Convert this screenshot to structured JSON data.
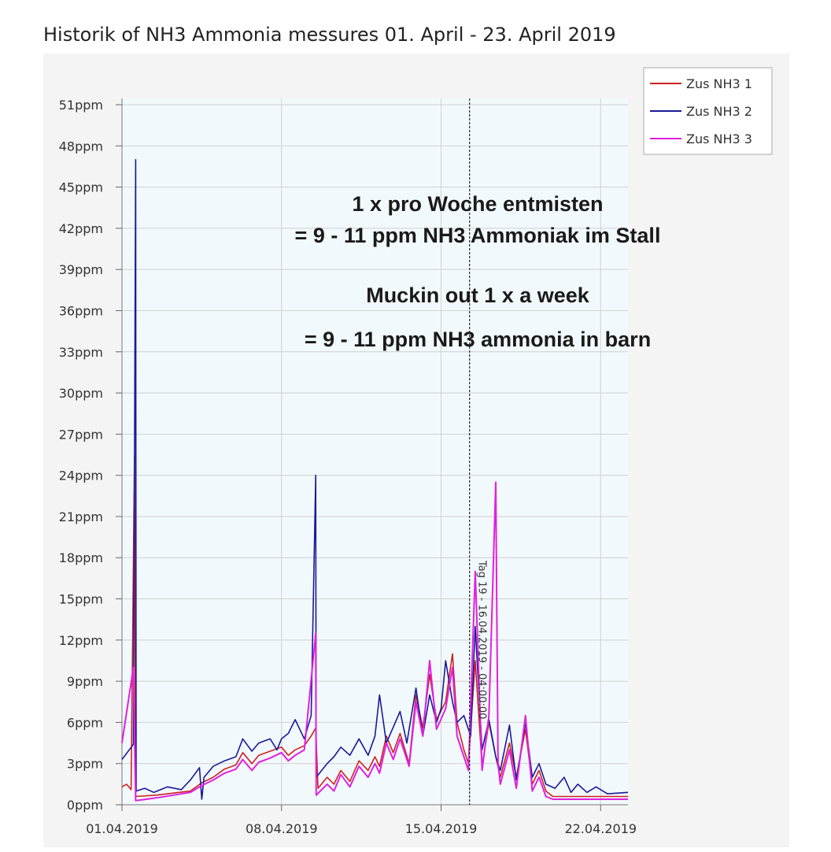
{
  "chart_data": {
    "type": "line",
    "title": "Historik of NH3 Ammonia messures 01. April - 23. April 2019",
    "xlabel": "",
    "ylabel": "",
    "x_start": "01.04.2019",
    "x_end": "23.04.2019",
    "xlim_days": [
      0,
      22.2
    ],
    "ylim": [
      0,
      51
    ],
    "y_ticks": [
      0,
      3,
      6,
      9,
      12,
      15,
      18,
      21,
      24,
      27,
      30,
      33,
      36,
      39,
      42,
      45,
      48,
      51
    ],
    "y_tick_labels": [
      "0ppm",
      "3ppm",
      "6ppm",
      "9ppm",
      "12ppm",
      "15ppm",
      "18ppm",
      "21ppm",
      "24ppm",
      "27ppm",
      "30ppm",
      "33ppm",
      "36ppm",
      "39ppm",
      "42ppm",
      "45ppm",
      "48ppm",
      "51ppm"
    ],
    "x_ticks": [
      0,
      7,
      14,
      21
    ],
    "x_tick_labels": [
      "01.04.2019",
      "08.04.2019",
      "15.04.2019",
      "22.04.2019"
    ],
    "grid": true,
    "legend_position": "top-right",
    "series": [
      {
        "name": "Zus NH3 1",
        "color": "#cc2222",
        "points": [
          [
            0,
            1.3
          ],
          [
            0.2,
            1.5
          ],
          [
            0.4,
            1.1
          ],
          [
            0.55,
            25.5
          ],
          [
            0.6,
            0.6
          ],
          [
            1.5,
            0.7
          ],
          [
            3.0,
            1.0
          ],
          [
            3.5,
            1.6
          ],
          [
            4.0,
            2.0
          ],
          [
            4.5,
            2.6
          ],
          [
            5.0,
            2.9
          ],
          [
            5.3,
            3.8
          ],
          [
            5.7,
            3.0
          ],
          [
            6.0,
            3.6
          ],
          [
            6.5,
            3.9
          ],
          [
            7.0,
            4.2
          ],
          [
            7.3,
            3.6
          ],
          [
            7.6,
            4.0
          ],
          [
            8.0,
            4.3
          ],
          [
            8.3,
            5.0
          ],
          [
            8.5,
            5.6
          ],
          [
            8.6,
            1.2
          ],
          [
            9.0,
            2.0
          ],
          [
            9.3,
            1.5
          ],
          [
            9.6,
            2.5
          ],
          [
            10.0,
            1.7
          ],
          [
            10.4,
            3.2
          ],
          [
            10.8,
            2.5
          ],
          [
            11.1,
            3.5
          ],
          [
            11.3,
            2.8
          ],
          [
            11.6,
            5.0
          ],
          [
            11.9,
            3.8
          ],
          [
            12.2,
            5.2
          ],
          [
            12.6,
            3.0
          ],
          [
            12.9,
            8.0
          ],
          [
            13.2,
            5.6
          ],
          [
            13.5,
            9.5
          ],
          [
            13.8,
            6.2
          ],
          [
            14.2,
            7.5
          ],
          [
            14.5,
            11.0
          ],
          [
            14.7,
            6.0
          ],
          [
            15.0,
            4.0
          ],
          [
            15.2,
            3.0
          ],
          [
            15.5,
            10.5
          ],
          [
            15.8,
            2.8
          ],
          [
            16.1,
            6.0
          ],
          [
            16.4,
            3.5
          ],
          [
            16.6,
            2.0
          ],
          [
            17.0,
            4.5
          ],
          [
            17.3,
            2.0
          ],
          [
            17.7,
            5.5
          ],
          [
            18.0,
            1.5
          ],
          [
            18.3,
            2.5
          ],
          [
            18.6,
            1.0
          ],
          [
            18.9,
            0.6
          ],
          [
            22.2,
            0.6
          ]
        ]
      },
      {
        "name": "Zus NH3 2",
        "color": "#1a1a99",
        "points": [
          [
            0,
            3.3
          ],
          [
            0.5,
            4.4
          ],
          [
            0.6,
            47.0
          ],
          [
            0.62,
            1.0
          ],
          [
            1.0,
            1.2
          ],
          [
            1.4,
            0.9
          ],
          [
            2.0,
            1.3
          ],
          [
            2.6,
            1.1
          ],
          [
            3.0,
            1.8
          ],
          [
            3.4,
            2.7
          ],
          [
            3.5,
            0.4
          ],
          [
            3.6,
            2.0
          ],
          [
            4.0,
            2.8
          ],
          [
            4.5,
            3.2
          ],
          [
            5.0,
            3.5
          ],
          [
            5.3,
            4.8
          ],
          [
            5.7,
            3.9
          ],
          [
            6.0,
            4.5
          ],
          [
            6.5,
            4.8
          ],
          [
            6.8,
            4.0
          ],
          [
            7.0,
            4.8
          ],
          [
            7.3,
            5.2
          ],
          [
            7.6,
            6.2
          ],
          [
            8.0,
            4.8
          ],
          [
            8.3,
            6.5
          ],
          [
            8.5,
            24.0
          ],
          [
            8.52,
            2.0
          ],
          [
            9.0,
            3.0
          ],
          [
            9.3,
            3.5
          ],
          [
            9.6,
            4.2
          ],
          [
            10.0,
            3.6
          ],
          [
            10.4,
            4.8
          ],
          [
            10.8,
            3.6
          ],
          [
            11.1,
            5.0
          ],
          [
            11.3,
            8.0
          ],
          [
            11.6,
            4.5
          ],
          [
            12.2,
            6.8
          ],
          [
            12.5,
            4.5
          ],
          [
            12.9,
            8.5
          ],
          [
            13.2,
            5.0
          ],
          [
            13.5,
            8.0
          ],
          [
            13.8,
            6.0
          ],
          [
            14.0,
            7.0
          ],
          [
            14.2,
            10.5
          ],
          [
            14.5,
            7.5
          ],
          [
            14.7,
            6.0
          ],
          [
            15.0,
            6.5
          ],
          [
            15.3,
            5.0
          ],
          [
            15.5,
            13.0
          ],
          [
            15.8,
            4.0
          ],
          [
            16.1,
            6.2
          ],
          [
            16.4,
            3.5
          ],
          [
            16.6,
            2.5
          ],
          [
            17.0,
            5.8
          ],
          [
            17.3,
            1.8
          ],
          [
            17.7,
            6.0
          ],
          [
            18.0,
            2.0
          ],
          [
            18.3,
            3.0
          ],
          [
            18.6,
            1.5
          ],
          [
            19.0,
            1.2
          ],
          [
            19.4,
            2.0
          ],
          [
            19.7,
            0.9
          ],
          [
            20.0,
            1.5
          ],
          [
            20.4,
            0.9
          ],
          [
            20.8,
            1.3
          ],
          [
            21.3,
            0.8
          ],
          [
            22.2,
            0.9
          ]
        ]
      },
      {
        "name": "Zus NH3 3",
        "color": "#e020e0",
        "points": [
          [
            0,
            4.5
          ],
          [
            0.5,
            10.0
          ],
          [
            0.6,
            0.3
          ],
          [
            1.5,
            0.5
          ],
          [
            3.0,
            0.9
          ],
          [
            3.5,
            1.4
          ],
          [
            4.0,
            1.8
          ],
          [
            4.5,
            2.3
          ],
          [
            5.0,
            2.6
          ],
          [
            5.3,
            3.3
          ],
          [
            5.7,
            2.5
          ],
          [
            6.0,
            3.1
          ],
          [
            6.5,
            3.4
          ],
          [
            7.0,
            3.8
          ],
          [
            7.3,
            3.2
          ],
          [
            7.6,
            3.6
          ],
          [
            8.0,
            4.0
          ],
          [
            8.5,
            12.5
          ],
          [
            8.52,
            0.7
          ],
          [
            9.0,
            1.5
          ],
          [
            9.3,
            1.0
          ],
          [
            9.6,
            2.2
          ],
          [
            10.0,
            1.3
          ],
          [
            10.4,
            2.8
          ],
          [
            10.8,
            2.0
          ],
          [
            11.1,
            3.0
          ],
          [
            11.3,
            2.3
          ],
          [
            11.6,
            4.5
          ],
          [
            11.9,
            3.3
          ],
          [
            12.2,
            4.8
          ],
          [
            12.6,
            2.8
          ],
          [
            12.9,
            7.5
          ],
          [
            13.2,
            5.0
          ],
          [
            13.5,
            10.5
          ],
          [
            13.8,
            5.5
          ],
          [
            14.2,
            7.0
          ],
          [
            14.5,
            10.0
          ],
          [
            14.7,
            5.0
          ],
          [
            15.0,
            3.5
          ],
          [
            15.2,
            2.5
          ],
          [
            15.5,
            17.0
          ],
          [
            15.8,
            2.5
          ],
          [
            16.1,
            6.5
          ],
          [
            16.4,
            23.5
          ],
          [
            16.5,
            3.0
          ],
          [
            16.6,
            1.5
          ],
          [
            17.0,
            4.0
          ],
          [
            17.3,
            1.2
          ],
          [
            17.7,
            6.5
          ],
          [
            18.0,
            1.0
          ],
          [
            18.3,
            2.0
          ],
          [
            18.6,
            0.6
          ],
          [
            18.9,
            0.4
          ],
          [
            22.2,
            0.4
          ]
        ]
      }
    ],
    "marker": {
      "x_day": 15.25,
      "label": "Tag 19 - 16.04.2019 - 04:00:00"
    },
    "annotations": [
      "1 x pro Woche entmisten",
      "= 9 - 11 ppm NH3 Ammoniak im Stall",
      "Muckin out 1 x a week",
      "= 9 - 11 ppm NH3 ammonia in barn"
    ]
  }
}
